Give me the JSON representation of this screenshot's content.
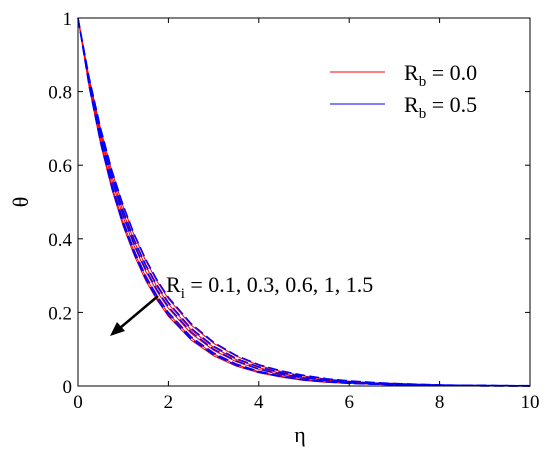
{
  "chart_data": {
    "type": "line",
    "title": "",
    "xlabel": "η",
    "ylabel": "θ",
    "xlim": [
      0,
      10
    ],
    "ylim": [
      0,
      1
    ],
    "x_ticks": [
      "0",
      "2",
      "4",
      "6",
      "8",
      "10"
    ],
    "y_ticks": [
      "0",
      "0.2",
      "0.4",
      "0.6",
      "0.8",
      "1"
    ],
    "grid": false,
    "legend_position": "top-right",
    "legend": [
      {
        "label_main": "R",
        "label_sub": "b",
        "label_rest": " = 0.0",
        "color": "#ff0000",
        "style": "solid"
      },
      {
        "label_main": "R",
        "label_sub": "b",
        "label_rest": " = 0.5",
        "color": "#0000ff",
        "style": "dashed"
      }
    ],
    "annotation": {
      "text_main": "R",
      "text_sub": "i",
      "text_rest": " = 0.1, 0.3, 0.6, 1, 1.5"
    },
    "x": [
      0,
      0.25,
      0.5,
      0.75,
      1,
      1.25,
      1.5,
      1.75,
      2,
      2.5,
      3,
      3.5,
      4,
      4.5,
      5,
      5.5,
      6,
      6.5,
      7,
      7.5,
      8,
      8.5,
      9,
      9.5,
      10
    ],
    "series": [
      {
        "group": "Rb = 0.0",
        "Ri": "0.1",
        "color": "#ff0000",
        "style": "solid",
        "values": [
          1,
          0.81,
          0.658,
          0.534,
          0.434,
          0.353,
          0.286,
          0.233,
          0.189,
          0.125,
          0.082,
          0.054,
          0.036,
          0.024,
          0.015,
          0.01,
          0.007,
          0.005,
          0.003,
          0.002,
          0.001,
          0.001,
          0,
          0,
          0
        ]
      },
      {
        "group": "Rb = 0.0",
        "Ri": "0.3",
        "color": "#ff0000",
        "style": "solid",
        "values": [
          1,
          0.816,
          0.666,
          0.543,
          0.444,
          0.362,
          0.296,
          0.241,
          0.197,
          0.131,
          0.087,
          0.058,
          0.039,
          0.026,
          0.017,
          0.011,
          0.008,
          0.005,
          0.003,
          0.002,
          0.001,
          0.001,
          0,
          0,
          0
        ]
      },
      {
        "group": "Rb = 0.0",
        "Ri": "0.6",
        "color": "#ff0000",
        "style": "solid",
        "values": [
          1,
          0.823,
          0.678,
          0.558,
          0.459,
          0.378,
          0.311,
          0.256,
          0.211,
          0.143,
          0.097,
          0.066,
          0.045,
          0.03,
          0.021,
          0.014,
          0.009,
          0.006,
          0.004,
          0.003,
          0.002,
          0.001,
          0.001,
          0,
          0
        ]
      },
      {
        "group": "Rb = 0.0",
        "Ri": "1",
        "color": "#ff0000",
        "style": "solid",
        "values": [
          1,
          0.829,
          0.687,
          0.57,
          0.472,
          0.391,
          0.325,
          0.269,
          0.223,
          0.153,
          0.105,
          0.072,
          0.05,
          0.034,
          0.023,
          0.016,
          0.011,
          0.008,
          0.005,
          0.004,
          0.002,
          0.002,
          0.001,
          0.001,
          0
        ]
      },
      {
        "group": "Rb = 0.0",
        "Ri": "1.5",
        "color": "#ff0000",
        "style": "solid",
        "values": [
          1,
          0.835,
          0.698,
          0.583,
          0.487,
          0.407,
          0.34,
          0.284,
          0.237,
          0.166,
          0.116,
          0.081,
          0.056,
          0.039,
          0.027,
          0.019,
          0.013,
          0.009,
          0.007,
          0.005,
          0.003,
          0.002,
          0.001,
          0.001,
          0
        ]
      },
      {
        "group": "Rb = 0.5",
        "Ri": "0.1",
        "color": "#0000ff",
        "style": "dashed",
        "values": [
          1,
          0.812,
          0.661,
          0.538,
          0.438,
          0.357,
          0.29,
          0.236,
          0.192,
          0.128,
          0.085,
          0.056,
          0.037,
          0.025,
          0.016,
          0.011,
          0.007,
          0.005,
          0.003,
          0.002,
          0.001,
          0.001,
          0,
          0,
          0
        ]
      },
      {
        "group": "Rb = 0.5",
        "Ri": "0.3",
        "color": "#0000ff",
        "style": "dashed",
        "values": [
          1,
          0.818,
          0.669,
          0.547,
          0.448,
          0.366,
          0.299,
          0.245,
          0.2,
          0.134,
          0.09,
          0.06,
          0.04,
          0.027,
          0.018,
          0.012,
          0.008,
          0.005,
          0.004,
          0.002,
          0.002,
          0.001,
          0.001,
          0,
          0
        ]
      },
      {
        "group": "Rb = 0.5",
        "Ri": "0.6",
        "color": "#0000ff",
        "style": "dashed",
        "values": [
          1,
          0.825,
          0.681,
          0.562,
          0.464,
          0.383,
          0.316,
          0.261,
          0.215,
          0.147,
          0.1,
          0.068,
          0.046,
          0.032,
          0.022,
          0.015,
          0.01,
          0.007,
          0.005,
          0.003,
          0.002,
          0.001,
          0.001,
          0.001,
          0
        ]
      },
      {
        "group": "Rb = 0.5",
        "Ri": "1",
        "color": "#0000ff",
        "style": "dashed",
        "values": [
          1,
          0.831,
          0.691,
          0.574,
          0.477,
          0.396,
          0.329,
          0.274,
          0.227,
          0.157,
          0.108,
          0.075,
          0.052,
          0.036,
          0.025,
          0.017,
          0.012,
          0.008,
          0.006,
          0.004,
          0.003,
          0.002,
          0.001,
          0.001,
          0
        ]
      },
      {
        "group": "Rb = 0.5",
        "Ri": "1.5",
        "color": "#0000ff",
        "style": "dashed",
        "values": [
          1,
          0.837,
          0.701,
          0.586,
          0.491,
          0.411,
          0.344,
          0.288,
          0.241,
          0.17,
          0.119,
          0.083,
          0.058,
          0.041,
          0.029,
          0.02,
          0.014,
          0.01,
          0.007,
          0.005,
          0.003,
          0.002,
          0.002,
          0.001,
          0.001
        ]
      }
    ]
  }
}
